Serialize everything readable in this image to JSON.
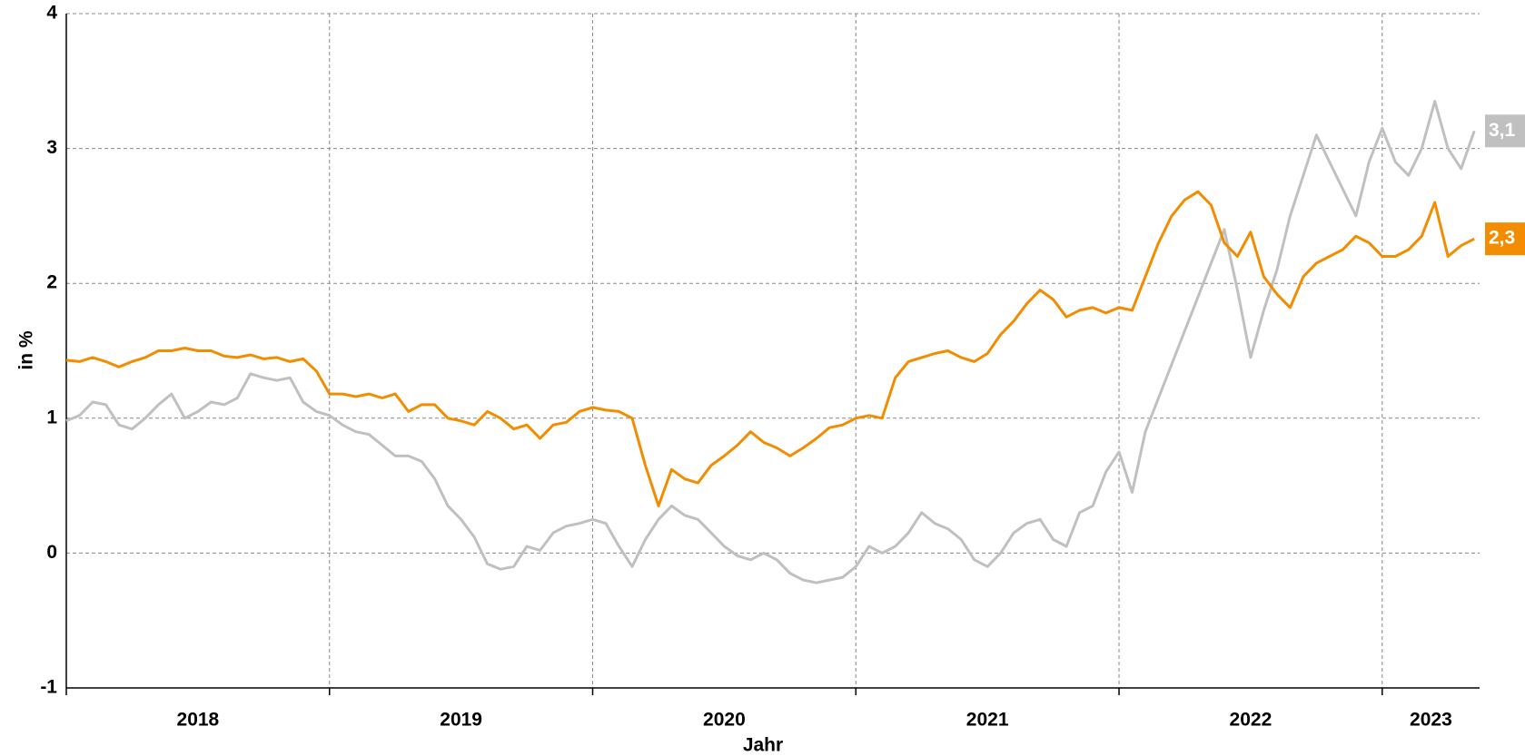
{
  "chart_data": {
    "type": "line",
    "xlabel": "Jahr",
    "ylabel": "in %",
    "xlim": [
      2018,
      2023.37
    ],
    "xgrid": [
      2019,
      2020,
      2021,
      2022,
      2023
    ],
    "xticks": [
      {
        "value": 2018.5,
        "label": "2018"
      },
      {
        "value": 2019.5,
        "label": "2019"
      },
      {
        "value": 2020.5,
        "label": "2020"
      },
      {
        "value": 2021.5,
        "label": "2021"
      },
      {
        "value": 2022.5,
        "label": "2022"
      },
      {
        "value": 2023.185,
        "label": "2023"
      }
    ],
    "ylim": [
      -1,
      4
    ],
    "yticks": [
      -1,
      0,
      1,
      2,
      3,
      4
    ],
    "grid": true,
    "x": [
      2018,
      2018.05,
      2018.1,
      2018.15,
      2018.2,
      2018.25,
      2018.3,
      2018.35,
      2018.4,
      2018.45,
      2018.5,
      2018.55,
      2018.6,
      2018.65,
      2018.7,
      2018.75,
      2018.8,
      2018.85,
      2018.9,
      2018.95,
      2019,
      2019.05,
      2019.1,
      2019.15,
      2019.2,
      2019.25,
      2019.3,
      2019.35,
      2019.4,
      2019.45,
      2019.5,
      2019.55,
      2019.6,
      2019.65,
      2019.7,
      2019.75,
      2019.8,
      2019.85,
      2019.9,
      2019.95,
      2020,
      2020.05,
      2020.1,
      2020.15,
      2020.2,
      2020.25,
      2020.3,
      2020.35,
      2020.4,
      2020.45,
      2020.5,
      2020.55,
      2020.6,
      2020.65,
      2020.7,
      2020.75,
      2020.8,
      2020.85,
      2020.9,
      2020.95,
      2021,
      2021.05,
      2021.1,
      2021.15,
      2021.2,
      2021.25,
      2021.3,
      2021.35,
      2021.4,
      2021.45,
      2021.5,
      2021.55,
      2021.6,
      2021.65,
      2021.7,
      2021.75,
      2021.8,
      2021.85,
      2021.9,
      2021.95,
      2022,
      2022.05,
      2022.1,
      2022.15,
      2022.2,
      2022.25,
      2022.3,
      2022.35,
      2022.4,
      2022.45,
      2022.5,
      2022.55,
      2022.6,
      2022.65,
      2022.7,
      2022.75,
      2022.8,
      2022.85,
      2022.9,
      2022.95,
      2023,
      2023.05,
      2023.1,
      2023.15,
      2023.2,
      2023.25,
      2023.3,
      2023.35
    ],
    "series": [
      {
        "color": "#c0c0c0",
        "end_label": "3,1",
        "values": [
          0.98,
          1.02,
          1.12,
          1.1,
          0.95,
          0.92,
          1.0,
          1.1,
          1.18,
          1.0,
          1.05,
          1.12,
          1.1,
          1.15,
          1.33,
          1.3,
          1.28,
          1.3,
          1.12,
          1.05,
          1.02,
          0.95,
          0.9,
          0.88,
          0.8,
          0.72,
          0.72,
          0.68,
          0.55,
          0.35,
          0.25,
          0.12,
          -0.08,
          -0.12,
          -0.1,
          0.05,
          0.02,
          0.15,
          0.2,
          0.22,
          0.25,
          0.22,
          0.05,
          -0.1,
          0.1,
          0.25,
          0.35,
          0.28,
          0.25,
          0.15,
          0.05,
          -0.02,
          -0.05,
          0.0,
          -0.05,
          -0.15,
          -0.2,
          -0.22,
          -0.2,
          -0.18,
          -0.1,
          0.05,
          0.0,
          0.05,
          0.15,
          0.3,
          0.22,
          0.18,
          0.1,
          -0.05,
          -0.1,
          0.0,
          0.15,
          0.22,
          0.25,
          0.1,
          0.05,
          0.3,
          0.35,
          0.6,
          0.75,
          0.45,
          0.9,
          1.15,
          1.4,
          1.65,
          1.9,
          2.15,
          2.4,
          1.95,
          1.45,
          1.8,
          2.1,
          2.5,
          2.8,
          3.1,
          2.9,
          2.7,
          2.5,
          2.9,
          3.15,
          2.9,
          2.8,
          3.0,
          3.35,
          3.0,
          2.85,
          3.13
        ]
      },
      {
        "color": "#f28c00",
        "end_label": "2,3",
        "values": [
          1.43,
          1.42,
          1.45,
          1.42,
          1.38,
          1.42,
          1.45,
          1.5,
          1.5,
          1.52,
          1.5,
          1.5,
          1.46,
          1.45,
          1.47,
          1.44,
          1.45,
          1.42,
          1.44,
          1.35,
          1.18,
          1.18,
          1.16,
          1.18,
          1.15,
          1.18,
          1.05,
          1.1,
          1.1,
          1.0,
          0.98,
          0.95,
          1.05,
          1.0,
          0.92,
          0.95,
          0.85,
          0.95,
          0.97,
          1.05,
          1.08,
          1.06,
          1.05,
          1.0,
          0.65,
          0.35,
          0.62,
          0.55,
          0.52,
          0.65,
          0.72,
          0.8,
          0.9,
          0.82,
          0.78,
          0.72,
          0.78,
          0.85,
          0.93,
          0.95,
          1.0,
          1.02,
          1.0,
          1.3,
          1.42,
          1.45,
          1.48,
          1.5,
          1.45,
          1.42,
          1.48,
          1.62,
          1.72,
          1.85,
          1.95,
          1.88,
          1.75,
          1.8,
          1.82,
          1.78,
          1.82,
          1.8,
          2.05,
          2.3,
          2.5,
          2.62,
          2.68,
          2.58,
          2.3,
          2.2,
          2.38,
          2.05,
          1.92,
          1.82,
          2.05,
          2.15,
          2.2,
          2.25,
          2.35,
          2.3,
          2.2,
          2.2,
          2.25,
          2.35,
          2.6,
          2.2,
          2.28,
          2.33
        ]
      }
    ]
  }
}
